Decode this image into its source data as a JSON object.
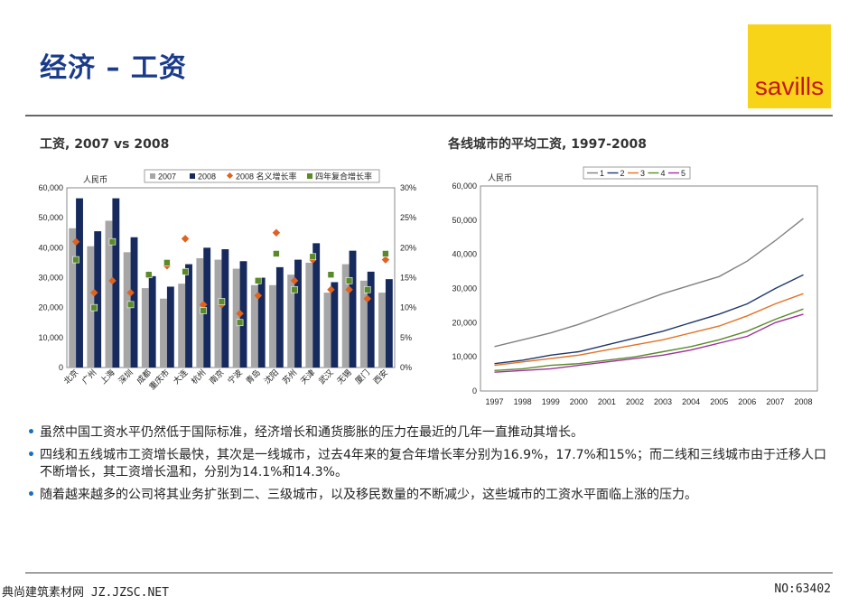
{
  "title": "经济 – 工资",
  "logo_text": "savills",
  "left_chart_title": "工资, 2007 vs 2008",
  "right_chart_title": "各线城市的平均工资, 1997-2008",
  "bullets": [
    "虽然中国工资水平仍然低于国际标准，经济增长和通货膨胀的压力在最近的几年一直推动其增长。",
    "四线和五线城市工资增长最快，其次是一线城市，过去4年来的复合年增长率分别为16.9%，17.7%和15%；而二线和三线城市由于迁移人口不断增长，其工资增长温和，分别为14.1%和14.3%。",
    "随着越来越多的公司将其业务扩张到二、三级城市，以及移民数量的不断减少，这些城市的工资水平面临上涨的压力。"
  ],
  "footer_left": "典尚建筑素材网 JZ.JZSC.NET",
  "footer_right": "NO:63402",
  "colors": {
    "title": "#1a3a8a",
    "bar2007": "#a6a6a6",
    "bar2008": "#172a5e",
    "nominal": "#e0621f",
    "cagr": "#5a8a2a"
  },
  "chart_data": [
    {
      "type": "bar",
      "title": "工资, 2007 vs 2008",
      "ylabel": "人民币",
      "ylim": [
        0,
        60000
      ],
      "y2lim": [
        0,
        0.3
      ],
      "yticks": [
        "0",
        "10,000",
        "20,000",
        "30,000",
        "40,000",
        "50,000",
        "60,000"
      ],
      "y2ticks": [
        "0%",
        "5%",
        "10%",
        "15%",
        "20%",
        "25%",
        "30%"
      ],
      "categories": [
        "北京",
        "广州",
        "上海",
        "深圳",
        "成都",
        "重庆市",
        "大连",
        "杭州",
        "南京",
        "宁波",
        "青岛",
        "沈阳",
        "苏州",
        "天津",
        "武汉",
        "无锡",
        "厦门",
        "西安"
      ],
      "series": [
        {
          "name": "2007",
          "kind": "bar",
          "values": [
            46500,
            40500,
            49000,
            38500,
            26500,
            23000,
            28000,
            36500,
            36000,
            33000,
            27500,
            27500,
            31000,
            35000,
            25000,
            34500,
            29000,
            25000
          ]
        },
        {
          "name": "2008",
          "kind": "bar",
          "values": [
            56500,
            45500,
            56500,
            43500,
            30500,
            27000,
            34500,
            40000,
            39500,
            35500,
            30000,
            33500,
            36000,
            41500,
            28500,
            39000,
            32000,
            29500
          ]
        },
        {
          "name": "2008 名义增长率",
          "kind": "marker",
          "values": [
            0.21,
            0.125,
            0.145,
            0.125,
            0.155,
            0.17,
            0.215,
            0.105,
            0.105,
            0.09,
            0.12,
            0.225,
            0.145,
            0.18,
            0.13,
            0.13,
            0.115,
            0.18
          ]
        },
        {
          "name": "四年复合增长率",
          "kind": "marker",
          "values": [
            0.18,
            0.1,
            0.21,
            0.105,
            0.155,
            0.175,
            0.16,
            0.095,
            0.11,
            0.075,
            0.145,
            0.19,
            0.13,
            0.185,
            0.155,
            0.145,
            0.13,
            0.19
          ]
        }
      ]
    },
    {
      "type": "line",
      "title": "各线城市的平均工资, 1997-2008",
      "ylabel": "人民币",
      "ylim": [
        0,
        60000
      ],
      "yticks": [
        "0",
        "10,000",
        "20,000",
        "30,000",
        "40,000",
        "50,000",
        "60,000"
      ],
      "categories": [
        "1997",
        "1998",
        "1999",
        "2000",
        "2001",
        "2002",
        "2003",
        "2004",
        "2005",
        "2006",
        "2007",
        "2008"
      ],
      "series": [
        {
          "name": "1",
          "color": "#808080",
          "values": [
            13000,
            15000,
            17000,
            19500,
            22500,
            25500,
            28500,
            31000,
            33500,
            38000,
            44000,
            50500
          ]
        },
        {
          "name": "2",
          "color": "#1f3768",
          "values": [
            8000,
            9000,
            10500,
            11500,
            13500,
            15500,
            17500,
            20000,
            22500,
            25500,
            30000,
            34000
          ]
        },
        {
          "name": "3",
          "color": "#e37222",
          "values": [
            7500,
            8500,
            9500,
            10500,
            12000,
            13500,
            15000,
            17000,
            19000,
            22000,
            25500,
            28500
          ]
        },
        {
          "name": "4",
          "color": "#5a8a2a",
          "values": [
            6000,
            6500,
            7500,
            8000,
            9000,
            10000,
            11500,
            13000,
            15000,
            17500,
            21000,
            24000
          ]
        },
        {
          "name": "5",
          "color": "#a0309a",
          "values": [
            5500,
            6000,
            6500,
            7500,
            8500,
            9500,
            10500,
            12000,
            14000,
            16000,
            20000,
            22500
          ]
        }
      ]
    }
  ]
}
